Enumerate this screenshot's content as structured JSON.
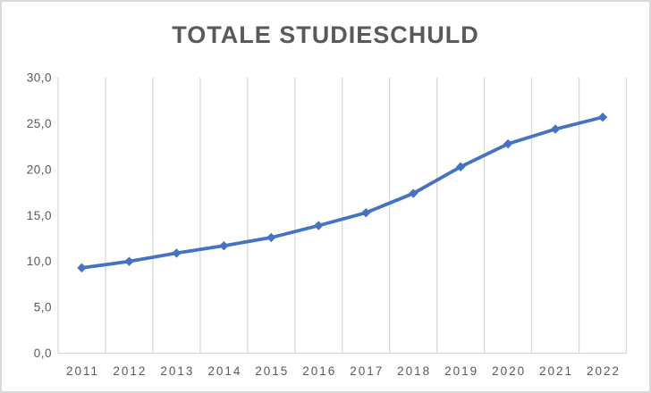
{
  "chart_data": {
    "type": "line",
    "title": "TOTALE STUDIESCHULD",
    "categories": [
      "2011",
      "2012",
      "2013",
      "2014",
      "2015",
      "2016",
      "2017",
      "2018",
      "2019",
      "2020",
      "2021",
      "2022"
    ],
    "values": [
      9.3,
      10.0,
      10.9,
      11.7,
      12.6,
      13.9,
      15.3,
      17.4,
      20.3,
      22.8,
      24.4,
      25.7
    ],
    "ylim": [
      0,
      30
    ],
    "ytick_labels": [
      "0,0",
      "5,0",
      "10,0",
      "15,0",
      "20,0",
      "25,0",
      "30,0"
    ],
    "xlabel": "",
    "ylabel": "",
    "grid": "vertical-only",
    "legend": "none",
    "marker": "diamond",
    "colors": {
      "line": "#4472C4",
      "marker": "#4472C4",
      "gridline": "#D9D9D9",
      "axis_line": "#D9D9D9",
      "axis_text": "#595959",
      "title_text": "#595959",
      "frame_border": "#D9D9D9",
      "background": "#FFFFFF"
    }
  }
}
